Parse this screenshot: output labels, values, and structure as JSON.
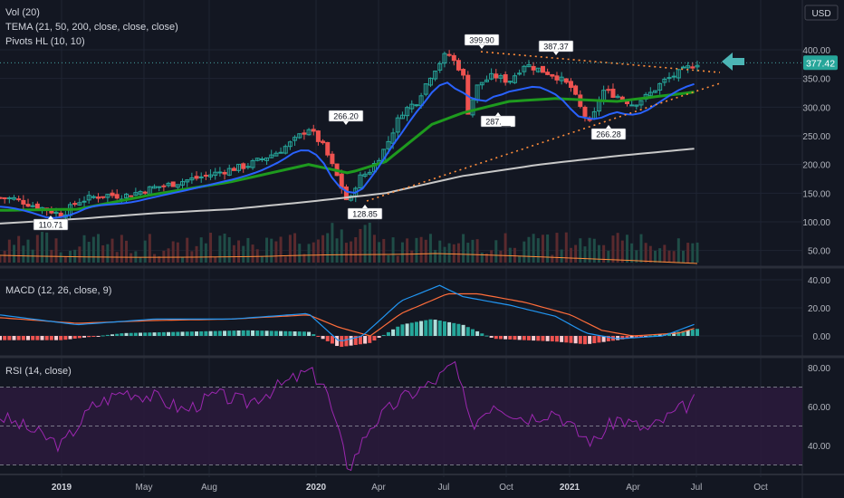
{
  "legend": {
    "vol": "Vol (20)",
    "tema": "TEMA (21, 50, 200, close, close, close)",
    "pivots": "Pivots HL (10, 10)",
    "macd": "MACD (12, 26, close, 9)",
    "rsi": "RSI (14, close)"
  },
  "currency_label": "USD",
  "last_price": "377.42",
  "colors": {
    "background": "#131722",
    "up": "#26a69a",
    "down": "#ef5350",
    "tema_fast": "#2962ff",
    "tema_mid": "#1e9a1e",
    "tema_slow": "#c8c8c8",
    "trendline": "#ff8c3a",
    "macd": "#2196f3",
    "signal": "#ff6d3a",
    "rsi": "#9c27b0",
    "arrow": "#4cb5b5"
  },
  "chart_data": [
    {
      "type": "candlestick",
      "name": "price",
      "y_ticks": [
        50,
        100,
        150,
        200,
        250,
        300,
        350,
        400
      ],
      "y_tick_labels": [
        "50.00",
        "100.00",
        "150.00",
        "200.00",
        "250.00",
        "300.00",
        "350.00",
        "400.00"
      ],
      "x_tick_labels": [
        "2019",
        "May",
        "Aug",
        "2020",
        "Apr",
        "Jul",
        "Oct",
        "2021",
        "Apr",
        "Jul",
        "Oct"
      ],
      "ylim": [
        15,
        440
      ],
      "pivot_labels": [
        "110.71",
        "266.20",
        "128.85",
        "399.90",
        "287.__",
        "387.37",
        "266.28"
      ],
      "pivots": [
        {
          "label": "110.71",
          "price": 110.71,
          "position": "low"
        },
        {
          "label": "266.20",
          "price": 266.2,
          "position": "high"
        },
        {
          "label": "128.85",
          "price": 128.85,
          "position": "low"
        },
        {
          "label": "399.90",
          "price": 399.9,
          "position": "high"
        },
        {
          "label": "287.__",
          "price": 287,
          "position": "low"
        },
        {
          "label": "387.37",
          "price": 387.37,
          "position": "high"
        },
        {
          "label": "266.28",
          "price": 266.28,
          "position": "low"
        }
      ],
      "tema_series": [
        {
          "period": 21,
          "color": "#2962ff"
        },
        {
          "period": 50,
          "color": "#1e9a1e"
        },
        {
          "period": 200,
          "color": "#c8c8c8"
        }
      ],
      "trendlines": [
        {
          "from": {
            "date": "2020-08",
            "price": 399.9
          },
          "to": {
            "date": "2021-09",
            "price": 355
          }
        },
        {
          "from": {
            "date": "2020-03",
            "price": 128.85
          },
          "to": {
            "date": "2021-09",
            "price": 340
          }
        }
      ]
    },
    {
      "type": "bar",
      "name": "Vol (20)",
      "note": "volume histogram with 20-period moving average, no axis labels"
    },
    {
      "type": "line",
      "name": "MACD (12, 26, close, 9)",
      "y_ticks": [
        0,
        20,
        40
      ],
      "y_tick_labels": [
        "0.00",
        "20.00",
        "40.00"
      ],
      "ylim": [
        -10,
        42
      ]
    },
    {
      "type": "line",
      "name": "RSI (14, close)",
      "y_ticks": [
        40,
        60,
        80
      ],
      "y_tick_labels": [
        "40.00",
        "60.00",
        "80.00"
      ],
      "ylim": [
        25,
        85
      ],
      "bands": [
        70,
        50,
        30
      ]
    }
  ]
}
